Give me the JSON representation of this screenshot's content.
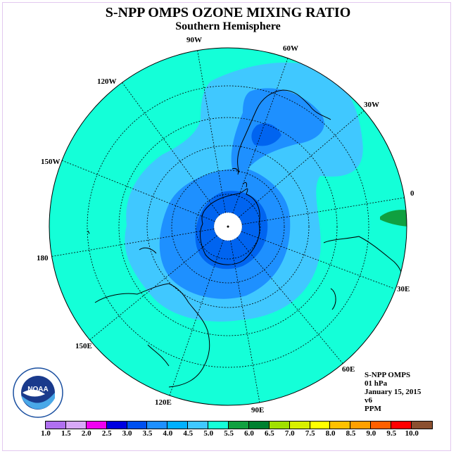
{
  "title": "S-NPP OMPS OZONE MIXING RATIO",
  "subtitle": "Southern Hemisphere",
  "longitude_labels": [
    "90W",
    "60W",
    "30W",
    "0",
    "30E",
    "60E",
    "90E",
    "120E",
    "150E",
    "180",
    "150W",
    "120W"
  ],
  "info": {
    "instrument": "S-NPP OMPS",
    "level": "01 hPa",
    "date": "January 15, 2015",
    "version": "v6",
    "units": "PPM"
  },
  "logo": {
    "text": "NOAA",
    "icon": "noaa-logo"
  },
  "colorbar": {
    "ticks": [
      "1.0",
      "1.5",
      "2.0",
      "2.5",
      "3.0",
      "3.5",
      "4.0",
      "4.5",
      "5.0",
      "5.5",
      "6.0",
      "6.5",
      "7.0",
      "7.5",
      "8.0",
      "8.5",
      "9.0",
      "9.5",
      "10.0"
    ],
    "colors": [
      "#b070f0",
      "#d8a8f8",
      "#f000f0",
      "#0000e0",
      "#0050f0",
      "#1e90ff",
      "#00b0ff",
      "#40c8ff",
      "#14ffd8",
      "#10a040",
      "#008030",
      "#a0e000",
      "#d8f000",
      "#ffff00",
      "#ffc000",
      "#ffa000",
      "#ff6000",
      "#ff0000",
      "#8b5030"
    ]
  },
  "map": {
    "projection": "south-polar-stereographic",
    "background_color": "#14ffd8",
    "coast_color": "#000000"
  }
}
